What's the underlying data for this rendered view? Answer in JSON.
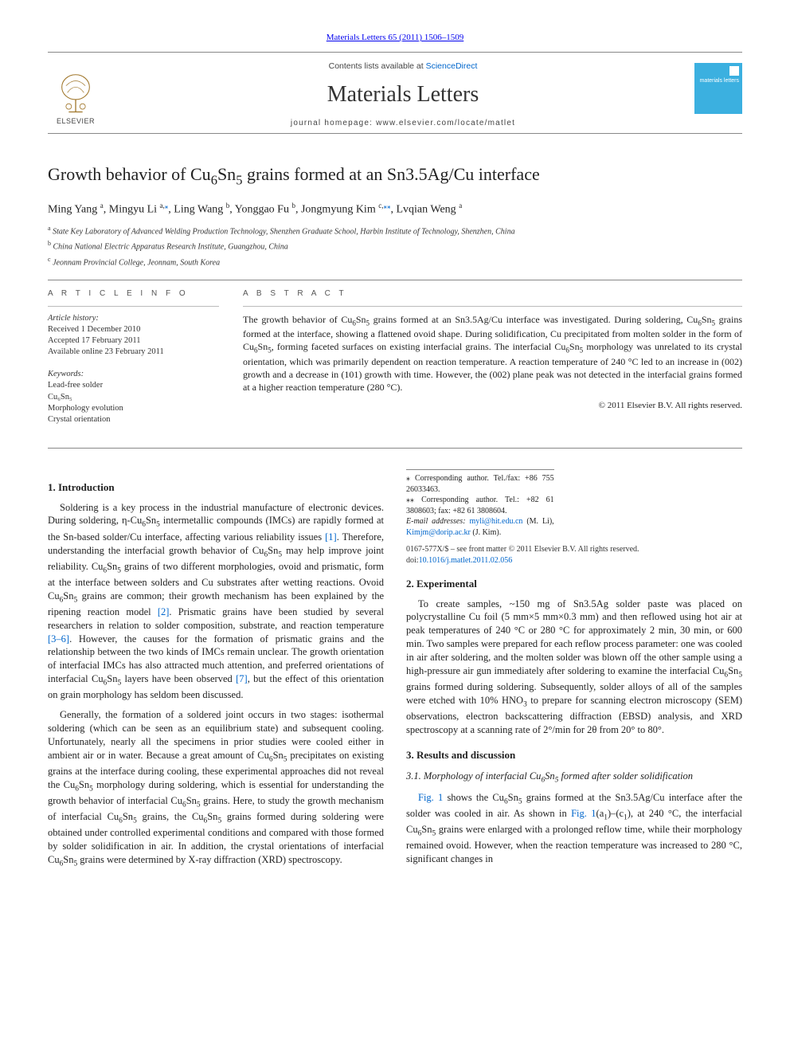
{
  "colors": {
    "link": "#0066cc",
    "text": "#222222",
    "rule": "#888888",
    "cover_bg": "#3bb0e0",
    "elsevier_orange": "#ff6600"
  },
  "header": {
    "citation": "Materials Letters 65 (2011) 1506–1509",
    "contents_prefix": "Contents lists available at ",
    "contents_link": "ScienceDirect",
    "journal": "Materials Letters",
    "homepage_label": "journal homepage: www.elsevier.com/locate/matlet",
    "publisher": "ELSEVIER",
    "cover_label": "materials letters"
  },
  "title_html": "Growth behavior of Cu<sub>6</sub>Sn<sub>5</sub> grains formed at an Sn3.5Ag/Cu interface",
  "authors_html": "Ming Yang <span class='sup'>a</span>, Mingyu Li <span class='sup'>a,</span><a href='#'><span class='sup'>⁎</span></a>, Ling Wang <span class='sup'>b</span>, Yonggao Fu <span class='sup'>b</span>, Jongmyung Kim <span class='sup'>c,</span><a href='#'><span class='sup'>⁎⁎</span></a>, Lvqian Weng <span class='sup'>a</span>",
  "affiliations": [
    {
      "sup": "a",
      "text": "State Key Laboratory of Advanced Welding Production Technology, Shenzhen Graduate School, Harbin Institute of Technology, Shenzhen, China"
    },
    {
      "sup": "b",
      "text": "China National Electric Apparatus Research Institute, Guangzhou, China"
    },
    {
      "sup": "c",
      "text": "Jeonnam Provincial College, Jeonnam, South Korea"
    }
  ],
  "article_info": {
    "heading": "A R T I C L E   I N F O",
    "history_label": "Article history:",
    "history": [
      "Received 1 December 2010",
      "Accepted 17 February 2011",
      "Available online 23 February 2011"
    ],
    "keywords_label": "Keywords:",
    "keywords": [
      "Lead-free solder",
      "Cu₆Sn₅",
      "Morphology evolution",
      "Crystal orientation"
    ]
  },
  "abstract": {
    "heading": "A B S T R A C T",
    "text_html": "The growth behavior of Cu<sub>6</sub>Sn<sub>5</sub> grains formed at an Sn3.5Ag/Cu interface was investigated. During soldering, Cu<sub>6</sub>Sn<sub>5</sub> grains formed at the interface, showing a flattened ovoid shape. During solidification, Cu precipitated from molten solder in the form of Cu<sub>6</sub>Sn<sub>5</sub>, forming faceted surfaces on existing interfacial grains. The interfacial Cu<sub>6</sub>Sn<sub>5</sub> morphology was unrelated to its crystal orientation, which was primarily dependent on reaction temperature. A reaction temperature of 240 °C led to an increase in (002) growth and a decrease in (101) growth with time. However, the (002) plane peak was not detected in the interfacial grains formed at a higher reaction temperature (280 °C).",
    "copyright": "© 2011 Elsevier B.V. All rights reserved."
  },
  "sections": {
    "intro_heading": "1. Introduction",
    "intro_p1_html": "Soldering is a key process in the industrial manufacture of electronic devices. During soldering, η-Cu<sub>6</sub>Sn<sub>5</sub> intermetallic compounds (IMCs) are rapidly formed at the Sn-based solder/Cu interface, affecting various reliability issues <span class='ref-link'>[1]</span>. Therefore, understanding the interfacial growth behavior of Cu<sub>6</sub>Sn<sub>5</sub> may help improve joint reliability. Cu<sub>6</sub>Sn<sub>5</sub> grains of two different morphologies, ovoid and prismatic, form at the interface between solders and Cu substrates after wetting reactions. Ovoid Cu<sub>6</sub>Sn<sub>5</sub> grains are common; their growth mechanism has been explained by the ripening reaction model <span class='ref-link'>[2]</span>. Prismatic grains have been studied by several researchers in relation to solder composition, substrate, and reaction temperature <span class='ref-link'>[3–6]</span>. However, the causes for the formation of prismatic grains and the relationship between the two kinds of IMCs remain unclear. The growth orientation of interfacial IMCs has also attracted much attention, and preferred orientations of interfacial Cu<sub>6</sub>Sn<sub>5</sub> layers have been observed <span class='ref-link'>[7]</span>, but the effect of this orientation on grain morphology has seldom been discussed.",
    "intro_p2_html": "Generally, the formation of a soldered joint occurs in two stages: isothermal soldering (which can be seen as an equilibrium state) and subsequent cooling. Unfortunately, nearly all the specimens in prior studies were cooled either in ambient air or in water. Because a great amount of Cu<sub>6</sub>Sn<sub>5</sub> precipitates on existing grains at the interface during cooling, these experimental approaches did not reveal the Cu<sub>6</sub>Sn<sub>5</sub> morphology during soldering, which is essential for understanding the growth behavior of interfacial Cu<sub>6</sub>Sn<sub>5</sub> grains. Here, to study the growth mechanism of interfacial Cu<sub>6</sub>Sn<sub>5</sub> grains, the Cu<sub>6</sub>Sn<sub>5</sub> grains formed during soldering were obtained under controlled experimental conditions and compared with those formed by solder solidification in air. In addition, the crystal orientations of interfacial Cu<sub>6</sub>Sn<sub>5</sub> grains were determined by X-ray diffraction (XRD) spectroscopy.",
    "exp_heading": "2. Experimental",
    "exp_p1_html": "To create samples, ~150 mg of Sn3.5Ag solder paste was placed on polycrystalline Cu foil (5 mm×5 mm×0.3 mm) and then reflowed using hot air at peak temperatures of 240 °C or 280 °C for approximately 2 min, 30 min, or 600 min. Two samples were prepared for each reflow process parameter: one was cooled in air after soldering, and the molten solder was blown off the other sample using a high-pressure air gun immediately after soldering to examine the interfacial Cu<sub>6</sub>Sn<sub>5</sub> grains formed during soldering. Subsequently, solder alloys of all of the samples were etched with 10% HNO<sub>3</sub> to prepare for scanning electron microscopy (SEM) observations, electron backscattering diffraction (EBSD) analysis, and XRD spectroscopy at a scanning rate of 2°/min for 2θ from 20° to 80°.",
    "results_heading": "3. Results and discussion",
    "sec31_heading_html": "3.1. Morphology of interfacial Cu<sub>6</sub>Sn<sub>5</sub> formed after solder solidification",
    "sec31_p1_html": "<span class='ref-link'>Fig. 1</span> shows the Cu<sub>6</sub>Sn<sub>5</sub> grains formed at the Sn3.5Ag/Cu interface after the solder was cooled in air. As shown in <span class='ref-link'>Fig. 1</span>(a<sub>1</sub>)–(c<sub>1</sub>), at 240 °C, the interfacial Cu<sub>6</sub>Sn<sub>5</sub> grains were enlarged with a prolonged reflow time, while their morphology remained ovoid. However, when the reaction temperature was increased to 280 °C, significant changes in"
  },
  "footnotes": {
    "corr1": "⁎ Corresponding author. Tel./fax: +86 755 26033463.",
    "corr2": "⁎⁎ Corresponding author. Tel.: +82 61 3808603; fax: +82 61 3808604.",
    "emails_label": "E-mail addresses: ",
    "email1": "myli@hit.edu.cn",
    "email1_who": " (M. Li), ",
    "email2": "Kimjm@dorip.ac.kr",
    "email2_who": " (J. Kim)."
  },
  "footer": {
    "line1": "0167-577X/$ – see front matter © 2011 Elsevier B.V. All rights reserved.",
    "line2": "doi:10.1016/j.matlet.2011.02.056"
  }
}
